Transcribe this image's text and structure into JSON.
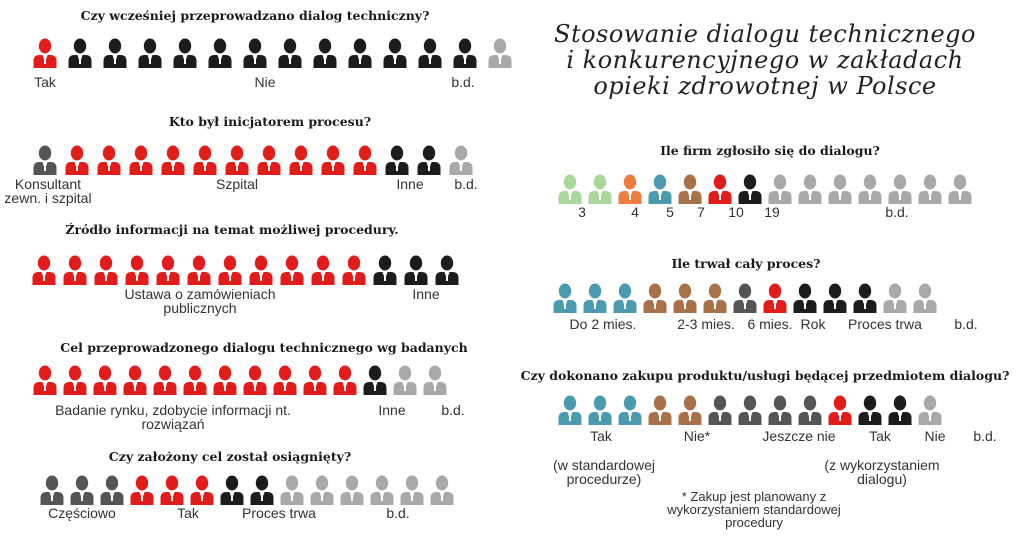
{
  "title_lines": [
    "Stosowanie dialogu technicznego",
    "i konkurencyjnego w zakładach",
    "opieki zdrowotnej w Polsce"
  ],
  "colors": {
    "red": "#e21b1b",
    "black": "#1c1c1c",
    "darkgray": "#555555",
    "gray": "#a9a9a9",
    "teal": "#4a9bb0",
    "brown": "#a9714a",
    "orange": "#ee7c3e",
    "lightgreen": "#a9d79c"
  },
  "chart_data": [
    {
      "type": "pictogram",
      "title": "Czy wcześniej przeprowadzano dialog techniczny?",
      "segments": [
        {
          "label": "Tak",
          "count": 1,
          "color": "red"
        },
        {
          "label": "Nie",
          "count": 12,
          "color": "black"
        },
        {
          "label": "b.d.",
          "count": 1,
          "color": "gray"
        }
      ]
    },
    {
      "type": "pictogram",
      "title": "Kto był inicjatorem procesu?",
      "segments": [
        {
          "label": "Konsultant zewn. i szpital",
          "label_lines": [
            "Konsultant",
            "zewn. i szpital"
          ],
          "count": 1,
          "color": "darkgray"
        },
        {
          "label": "Szpital",
          "count": 10,
          "color": "red"
        },
        {
          "label": "Inne",
          "count": 2,
          "color": "black"
        },
        {
          "label": "b.d.",
          "count": 1,
          "color": "gray"
        }
      ]
    },
    {
      "type": "pictogram",
      "title": "Źródło informacji na temat możliwej procedury.",
      "segments": [
        {
          "label": "Ustawa o zamówieniach publicznych",
          "label_lines": [
            "Ustawa o zamówieniach",
            "publicznych"
          ],
          "count": 11,
          "color": "red"
        },
        {
          "label": "Inne",
          "count": 3,
          "color": "black"
        }
      ]
    },
    {
      "type": "pictogram",
      "title": "Cel przeprowadzonego dialogu technicznego wg badanych",
      "segments": [
        {
          "label": "Badanie rynku, zdobycie informacji nt. rozwiązań",
          "label_lines": [
            "Badanie rynku, zdobycie informacji nt.",
            "rozwiązań"
          ],
          "count": 11,
          "color": "red"
        },
        {
          "label": "Inne",
          "count": 1,
          "color": "black"
        },
        {
          "label": "b.d.",
          "count": 2,
          "color": "gray"
        }
      ]
    },
    {
      "type": "pictogram",
      "title": "Czy założony cel został osiągnięty?",
      "segments": [
        {
          "label": "Częściowo",
          "count": 3,
          "color": "darkgray"
        },
        {
          "label": "Tak",
          "count": 3,
          "color": "red"
        },
        {
          "label": "Proces trwa",
          "count": 2,
          "color": "black"
        },
        {
          "label": "b.d.",
          "count": 6,
          "color": "gray"
        }
      ]
    },
    {
      "type": "pictogram",
      "title": "Ile firm zgłosiło się do dialogu?",
      "segments": [
        {
          "label": "3",
          "count": 2,
          "color": "lightgreen"
        },
        {
          "label": "4",
          "count": 1,
          "color": "orange"
        },
        {
          "label": "5",
          "count": 1,
          "color": "teal"
        },
        {
          "label": "7",
          "count": 1,
          "color": "brown"
        },
        {
          "label": "10",
          "count": 1,
          "color": "red"
        },
        {
          "label": "19",
          "count": 1,
          "color": "black"
        },
        {
          "label": "b.d.",
          "count": 7,
          "color": "gray"
        }
      ]
    },
    {
      "type": "pictogram",
      "title": "Ile trwał cały proces?",
      "segments": [
        {
          "label": "Do 2 mies.",
          "count": 3,
          "color": "teal"
        },
        {
          "label": "2-3 mies.",
          "count": 2,
          "color": "brown"
        },
        {
          "label": "6 mies.",
          "count": 1,
          "color": "brown"
        },
        {
          "label": "",
          "count": 1,
          "color": "darkgray"
        },
        {
          "label": "Rok",
          "count": 1,
          "color": "red"
        },
        {
          "label": "Proces trwa",
          "count": 3,
          "color": "black"
        },
        {
          "label": "b.d.",
          "count": 2,
          "color": "gray"
        }
      ]
    },
    {
      "type": "pictogram",
      "title": "Czy dokonano zakupu produktu/usługi będącej przedmiotem dialogu?",
      "segments": [
        {
          "label": "Tak",
          "count": 3,
          "color": "teal"
        },
        {
          "label": "Nie*",
          "count": 2,
          "color": "brown"
        },
        {
          "label": "Jeszcze nie",
          "count": 4,
          "color": "darkgray"
        },
        {
          "label": "Tak",
          "count": 1,
          "color": "red"
        },
        {
          "label": "Nie",
          "count": 2,
          "color": "black"
        },
        {
          "label": "b.d.",
          "count": 1,
          "color": "gray"
        }
      ],
      "notes": [
        {
          "lines": [
            "(w standardowej",
            "procedurze)"
          ]
        },
        {
          "lines": [
            "(z wykorzystaniem",
            "dialogu)"
          ]
        }
      ],
      "footnote_lines": [
        "* Zakup jest planowany z",
        "wykorzystaniem standardowej",
        "procedury"
      ]
    }
  ]
}
